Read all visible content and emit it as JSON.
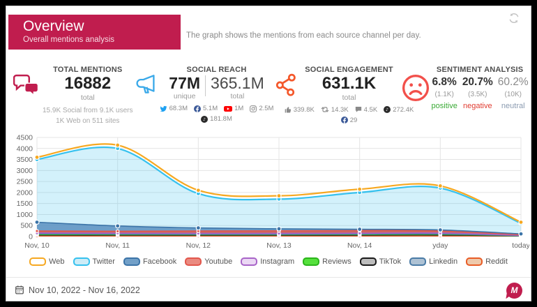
{
  "header": {
    "title": "Overview",
    "subtitle": "Overall mentions analysis",
    "description": "The graph shows the mentions from each source channel per day.",
    "accent_color": "#c01d4e"
  },
  "metrics": {
    "total_mentions": {
      "title": "TOTAL MENTIONS",
      "value": "16882",
      "value_label": "total",
      "line1": "15.9K Social from 9.1K users",
      "line2": "1K Web on 511 sites"
    },
    "social_reach": {
      "title": "SOCIAL REACH",
      "unique_value": "77M",
      "unique_label": "unique",
      "total_value": "365.1M",
      "total_label": "total",
      "breakdown": [
        {
          "icon": "twitter-icon",
          "value": "68.3M"
        },
        {
          "icon": "facebook-icon",
          "value": "5.1M"
        },
        {
          "icon": "youtube-icon",
          "value": "1M"
        },
        {
          "icon": "instagram-icon",
          "value": "2.5M"
        },
        {
          "icon": "tiktok-icon",
          "value": "181.8M"
        }
      ]
    },
    "social_engagement": {
      "title": "SOCIAL ENGAGEMENT",
      "value": "631.1K",
      "value_label": "total",
      "breakdown": [
        {
          "icon": "likes-icon",
          "value": "339.8K"
        },
        {
          "icon": "retweet-icon",
          "value": "14.3K"
        },
        {
          "icon": "comment-icon",
          "value": "4.5K"
        },
        {
          "icon": "tiktok-icon",
          "value": "272.4K"
        },
        {
          "icon": "facebook-icon",
          "value": "29"
        }
      ]
    },
    "sentiment": {
      "title": "SENTIMENT ANALYSIS",
      "positive": {
        "pct": "6.8%",
        "count": "(1.1K)",
        "label": "positive",
        "color": "#3aaa35"
      },
      "negative": {
        "pct": "20.7%",
        "count": "(3.5K)",
        "label": "negative",
        "color": "#e03c31"
      },
      "neutral": {
        "pct": "60.2%",
        "count": "(10K)",
        "label": "neutral",
        "color": "#8b9bb0"
      }
    }
  },
  "chart_data": {
    "type": "area",
    "title": "Mentions from each source channel per day",
    "x": [
      "Nov, 10",
      "Nov, 11",
      "Nov, 12",
      "Nov, 13",
      "Nov, 14",
      "yday",
      "today"
    ],
    "ylim": [
      0,
      4500
    ],
    "ytick_step": 500,
    "grid": true,
    "legend_position": "bottom",
    "series": [
      {
        "name": "Web",
        "line": "#f6a821",
        "swatch_fill": "#ffffff",
        "fill": "none",
        "fill_opacity": 0,
        "values": [
          3600,
          4150,
          2100,
          1850,
          2150,
          2300,
          650
        ]
      },
      {
        "name": "Twitter",
        "line": "#35c1ee",
        "swatch_fill": "#cdecf7",
        "fill": "#35c1ee",
        "fill_opacity": 0.22,
        "values": [
          3500,
          4000,
          1950,
          1700,
          2000,
          2200,
          600
        ]
      },
      {
        "name": "Facebook",
        "line": "#3c74a8",
        "swatch_fill": "#72a0c8",
        "fill": "#5b8fc0",
        "fill_opacity": 0.85,
        "values": [
          650,
          480,
          390,
          350,
          330,
          300,
          120
        ]
      },
      {
        "name": "Youtube",
        "line": "#e2574c",
        "swatch_fill": "#ea8a80",
        "fill": "#e2574c",
        "fill_opacity": 0.8,
        "values": [
          250,
          240,
          250,
          260,
          270,
          260,
          80
        ]
      },
      {
        "name": "Instagram",
        "line": "#a864c8",
        "swatch_fill": "#ebd8f4",
        "fill": "#c79ade",
        "fill_opacity": 0.75,
        "values": [
          160,
          150,
          140,
          140,
          150,
          160,
          50
        ]
      },
      {
        "name": "Reviews",
        "line": "#2bb51b",
        "swatch_fill": "#55e03c",
        "fill": "#55e03c",
        "fill_opacity": 0.8,
        "values": [
          90,
          85,
          80,
          80,
          90,
          95,
          30
        ]
      },
      {
        "name": "TikTok",
        "line": "#1a1a1a",
        "swatch_fill": "#bdbdbd",
        "fill": "#9a9a9a",
        "fill_opacity": 0.7,
        "values": [
          70,
          65,
          60,
          60,
          65,
          70,
          25
        ]
      },
      {
        "name": "Linkedin",
        "line": "#4a7ba6",
        "swatch_fill": "#aec2d4",
        "fill": "#92b1ca",
        "fill_opacity": 0.8,
        "values": [
          120,
          110,
          100,
          100,
          110,
          115,
          40
        ]
      },
      {
        "name": "Reddit",
        "line": "#e85c26",
        "swatch_fill": "#eec9ab",
        "fill": "#e8935c",
        "fill_opacity": 0.8,
        "values": [
          15,
          12,
          10,
          10,
          12,
          15,
          5
        ]
      }
    ]
  },
  "footer": {
    "date_range": "Nov 10, 2022 - Nov 16, 2022"
  }
}
